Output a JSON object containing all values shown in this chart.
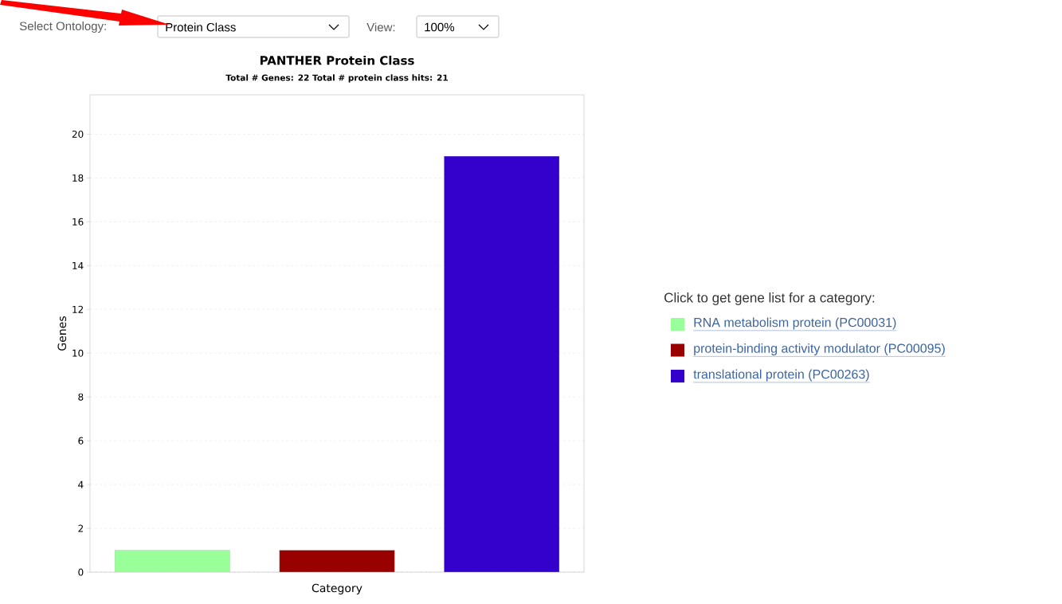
{
  "chart_data": {
    "type": "bar",
    "title": "PANTHER Protein Class",
    "subtitle": "Total # Genes: 22    Total # protein class hits: 21",
    "xlabel": "Category",
    "ylabel": "Genes",
    "legend_title": "Click to get gene list for a category:",
    "annotations": [
      "Select Ontology:",
      "Protein Class",
      "View:",
      "100%"
    ],
    "categories": [
      null,
      null,
      null
    ],
    "series": [
      {
        "name": "RNA metabolism protein (PC00031)",
        "color": "#99ff99",
        "values": [
          1,
          null,
          null
        ]
      },
      {
        "name": "protein-binding activity modulator (PC00095)",
        "color": "#990000",
        "values": [
          null,
          1,
          null
        ]
      },
      {
        "name": "translational protein (PC00263)",
        "color": "#3300cc",
        "values": [
          null,
          null,
          19
        ]
      }
    ],
    "ylim": [
      0,
      21.8
    ],
    "yticks": [
      0,
      2,
      4,
      6,
      8,
      10,
      12,
      14,
      16,
      18,
      20
    ],
    "grid": "y",
    "legend": "right",
    "tick_labels": "y"
  }
}
